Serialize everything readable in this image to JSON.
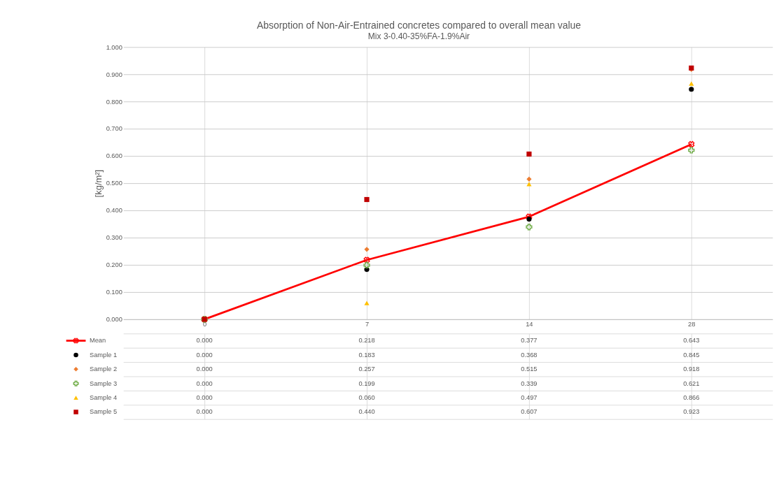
{
  "chart_data": {
    "type": "scatter",
    "title": "Absorption of Non-Air-Entrained concretes compared to overall mean value",
    "subtitle": "Mix 3-0.40-35%FA-1.9%Air",
    "ylabel": "[kg/m²]",
    "categories": [
      "0",
      "7",
      "14",
      "28"
    ],
    "ylim": [
      0,
      1
    ],
    "yticks": [
      {
        "value": 0,
        "label": "0.000"
      },
      {
        "value": 0.1,
        "label": "0.100"
      },
      {
        "value": 0.2,
        "label": "0.200"
      },
      {
        "value": 0.3,
        "label": "0.300"
      },
      {
        "value": 0.4,
        "label": "0.400"
      },
      {
        "value": 0.5,
        "label": "0.500"
      },
      {
        "value": 0.6,
        "label": "0.600"
      },
      {
        "value": 0.7,
        "label": "0.700"
      },
      {
        "value": 0.8,
        "label": "0.800"
      },
      {
        "value": 0.9,
        "label": "0.900"
      },
      {
        "value": 1,
        "label": "1.000"
      }
    ],
    "grid": true,
    "legend": "bottom",
    "series": [
      {
        "name": "Mean",
        "type": "line",
        "marker": "cross",
        "color": "#ff0000",
        "values": [
          0,
          0.218,
          0.377,
          0.643
        ],
        "value_labels": [
          "0.000",
          "0.218",
          "0.377",
          "0.643"
        ]
      },
      {
        "name": "Sample 1",
        "marker": "circle",
        "color": "#000000",
        "values": [
          null,
          0.183,
          0.368,
          0.845
        ],
        "value_labels": [
          "0.000",
          "0.183",
          "0.368",
          "0.845"
        ]
      },
      {
        "name": "Sample 2",
        "marker": "diamond",
        "color": "#ed7d31",
        "values": [
          null,
          0.257,
          0.515,
          0.918
        ],
        "value_labels": [
          "0.000",
          "0.257",
          "0.515",
          "0.918"
        ]
      },
      {
        "name": "Sample 3",
        "marker": "cross",
        "color": "#70ad47",
        "values": [
          0,
          0.199,
          0.339,
          0.621
        ],
        "value_labels": [
          "0.000",
          "0.199",
          "0.339",
          "0.621"
        ]
      },
      {
        "name": "Sample 4",
        "marker": "triangle",
        "color": "#ffc000",
        "values": [
          0,
          0.06,
          0.497,
          0.866
        ],
        "value_labels": [
          "0.000",
          "0.060",
          "0.497",
          "0.866"
        ]
      },
      {
        "name": "Sample 5",
        "marker": "square",
        "color": "#c00000",
        "values": [
          0,
          0.44,
          0.607,
          0.923
        ],
        "value_labels": [
          "0.000",
          "0.440",
          "0.607",
          "0.923"
        ]
      }
    ]
  }
}
